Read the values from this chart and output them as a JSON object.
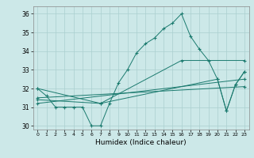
{
  "title": "",
  "xlabel": "Humidex (Indice chaleur)",
  "ylabel": "",
  "xlim": [
    -0.5,
    23.5
  ],
  "ylim": [
    29.8,
    36.4
  ],
  "xticks": [
    0,
    1,
    2,
    3,
    4,
    5,
    6,
    7,
    8,
    9,
    10,
    11,
    12,
    13,
    14,
    15,
    16,
    17,
    18,
    19,
    20,
    21,
    22,
    23
  ],
  "yticks": [
    30,
    31,
    32,
    33,
    34,
    35,
    36
  ],
  "bg_color": "#cce8e8",
  "line_color": "#1a7a6e",
  "series": [
    {
      "x": [
        0,
        1,
        2,
        3,
        4,
        5,
        6,
        7,
        8,
        9,
        10,
        11,
        12,
        13,
        14,
        15,
        16,
        17,
        18,
        19,
        20,
        21,
        22,
        23
      ],
      "y": [
        32.0,
        31.6,
        31.0,
        31.0,
        31.0,
        31.0,
        30.0,
        30.0,
        31.2,
        32.3,
        33.0,
        33.9,
        34.4,
        34.7,
        35.2,
        35.5,
        36.0,
        34.8,
        34.1,
        33.5,
        32.5,
        30.8,
        32.2,
        32.9
      ]
    },
    {
      "x": [
        0,
        7,
        16,
        23
      ],
      "y": [
        32.0,
        31.2,
        33.5,
        33.5
      ]
    },
    {
      "x": [
        0,
        23
      ],
      "y": [
        31.5,
        32.1
      ]
    },
    {
      "x": [
        0,
        23
      ],
      "y": [
        31.2,
        32.5
      ]
    },
    {
      "x": [
        0,
        7,
        20,
        21,
        22,
        23
      ],
      "y": [
        31.4,
        31.2,
        32.5,
        30.8,
        32.2,
        32.9
      ]
    }
  ]
}
